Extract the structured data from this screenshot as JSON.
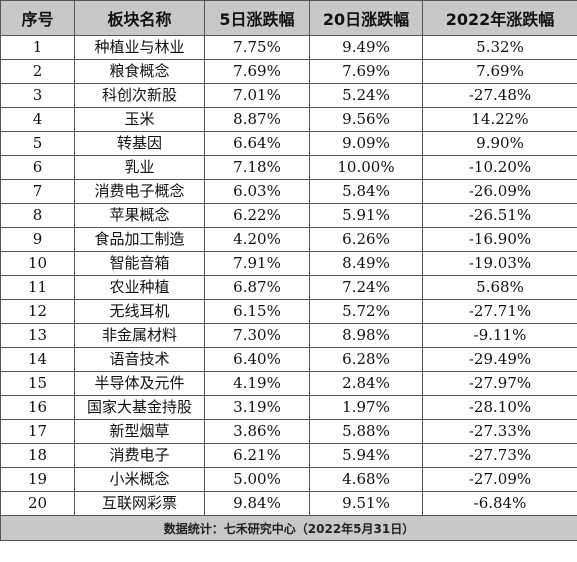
{
  "table": {
    "headers": [
      "序号",
      "板块名称",
      "5日涨跌幅",
      "20日涨跌幅",
      "2022年涨跌幅"
    ],
    "rows": [
      [
        "1",
        "种植业与林业",
        "7.75%",
        "9.49%",
        "5.32%"
      ],
      [
        "2",
        "粮食概念",
        "7.69%",
        "7.69%",
        "7.69%"
      ],
      [
        "3",
        "科创次新股",
        "7.01%",
        "5.24%",
        "-27.48%"
      ],
      [
        "4",
        "玉米",
        "8.87%",
        "9.56%",
        "14.22%"
      ],
      [
        "5",
        "转基因",
        "6.64%",
        "9.09%",
        "9.90%"
      ],
      [
        "6",
        "乳业",
        "7.18%",
        "10.00%",
        "-10.20%"
      ],
      [
        "7",
        "消费电子概念",
        "6.03%",
        "5.84%",
        "-26.09%"
      ],
      [
        "8",
        "苹果概念",
        "6.22%",
        "5.91%",
        "-26.51%"
      ],
      [
        "9",
        "食品加工制造",
        "4.20%",
        "6.26%",
        "-16.90%"
      ],
      [
        "10",
        "智能音箱",
        "7.91%",
        "8.49%",
        "-19.03%"
      ],
      [
        "11",
        "农业种植",
        "6.87%",
        "7.24%",
        "5.68%"
      ],
      [
        "12",
        "无线耳机",
        "6.15%",
        "5.72%",
        "-27.71%"
      ],
      [
        "13",
        "非金属材料",
        "7.30%",
        "8.98%",
        "-9.11%"
      ],
      [
        "14",
        "语音技术",
        "6.40%",
        "6.28%",
        "-29.49%"
      ],
      [
        "15",
        "半导体及元件",
        "4.19%",
        "2.84%",
        "-27.97%"
      ],
      [
        "16",
        "国家大基金持股",
        "3.19%",
        "1.97%",
        "-28.10%"
      ],
      [
        "17",
        "新型烟草",
        "3.86%",
        "5.88%",
        "-27.33%"
      ],
      [
        "18",
        "消费电子",
        "6.21%",
        "5.94%",
        "-27.73%"
      ],
      [
        "19",
        "小米概念",
        "5.00%",
        "4.68%",
        "-27.09%"
      ],
      [
        "20",
        "互联网彩票",
        "9.84%",
        "9.51%",
        "-6.84%"
      ]
    ],
    "footer": "数据统计：七禾研究中心（2022年5月31日）"
  }
}
